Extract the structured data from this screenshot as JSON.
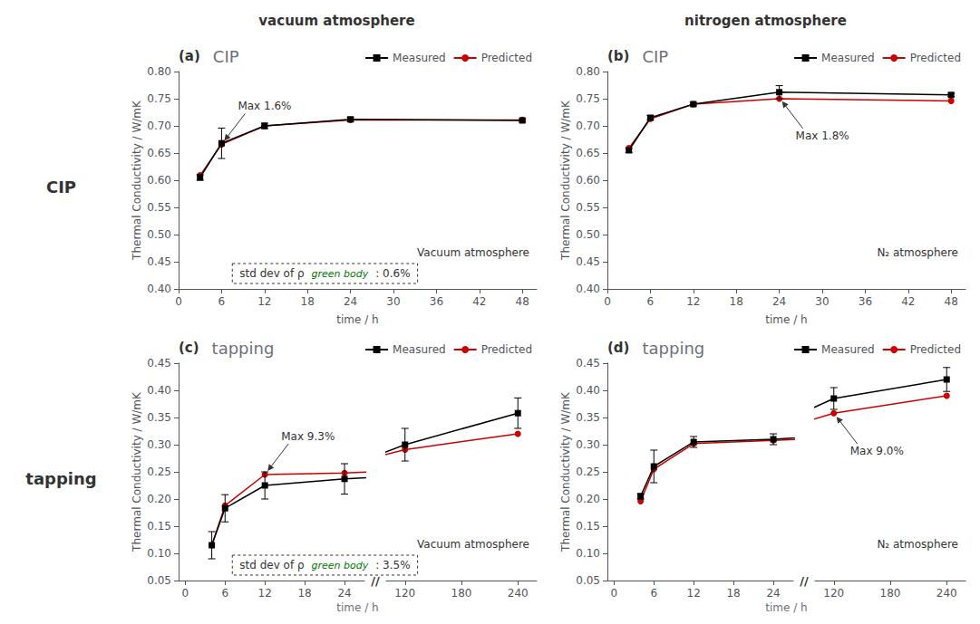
{
  "chart_data": [
    {
      "type": "line",
      "title": "(a)",
      "subtitle": "CIP",
      "column_title": "vacuum atmosphere",
      "row_title": "CIP",
      "xlabel": "time / h",
      "ylabel": "Thermal Conductivity / W/mK",
      "x": [
        3,
        6,
        12,
        24,
        48
      ],
      "series": [
        {
          "name": "Measured",
          "color": "#000000",
          "marker": "square",
          "line_style": "solid",
          "values": [
            0.605,
            0.668,
            0.7,
            0.712,
            0.71
          ],
          "errors": [
            0.005,
            0.028,
            0.005,
            0.004,
            0.003
          ]
        },
        {
          "name": "Predicted",
          "color": "#cc0000",
          "marker": "circle",
          "line_style": "solid",
          "values": [
            0.609,
            0.666,
            0.7,
            0.711,
            0.711
          ]
        }
      ],
      "xlim": [
        0,
        50
      ],
      "xticks": [
        0,
        6,
        12,
        18,
        24,
        30,
        36,
        42,
        48
      ],
      "ylim": [
        0.4,
        0.8
      ],
      "yticks": [
        {
          "value": 0.4,
          "label": "0.40"
        },
        0.45,
        {
          "value": 0.5,
          "label": "0.50"
        },
        0.55,
        {
          "value": 0.6,
          "label": "0.60"
        },
        0.65,
        {
          "value": 0.7,
          "label": "0.70"
        },
        0.75,
        {
          "value": 0.8,
          "label": "0.80"
        }
      ],
      "grid": false,
      "legend": "top",
      "annotations": [
        {
          "text": "Max 1.6%",
          "x": 6,
          "y": 0.666
        },
        {
          "text": "Vacuum atmosphere"
        },
        {
          "parts": [
            {
              "text": "std dev of ρ"
            },
            {
              "text": "green body",
              "color": "#007700"
            },
            {
              "text": ": 0.6%"
            }
          ]
        }
      ]
    },
    {
      "type": "line",
      "title": "(b)",
      "subtitle": "CIP",
      "column_title": "nitrogen atmosphere",
      "xlabel": "time / h",
      "ylabel": "Thermal Conductivity / W/mK",
      "x": [
        3,
        6,
        12,
        24,
        48
      ],
      "series": [
        {
          "name": "Measured",
          "color": "#000000",
          "marker": "square",
          "line_style": "solid",
          "values": [
            0.655,
            0.715,
            0.74,
            0.762,
            0.757
          ],
          "errors": [
            0.004,
            0.004,
            0.003,
            0.012,
            0.003
          ]
        },
        {
          "name": "Predicted",
          "color": "#cc0000",
          "marker": "circle",
          "line_style": "solid",
          "values": [
            0.659,
            0.713,
            0.74,
            0.75,
            0.746
          ]
        }
      ],
      "xlim": [
        0,
        50
      ],
      "xticks": [
        0,
        6,
        12,
        18,
        24,
        30,
        36,
        42,
        48
      ],
      "ylim": [
        0.4,
        0.8
      ],
      "yticks": [
        {
          "value": 0.4,
          "label": "0.40"
        },
        0.45,
        {
          "value": 0.5,
          "label": "0.50"
        },
        0.55,
        {
          "value": 0.6,
          "label": "0.60"
        },
        0.65,
        {
          "value": 0.7,
          "label": "0.70"
        },
        0.75,
        {
          "value": 0.8,
          "label": "0.80"
        }
      ],
      "grid": false,
      "legend": "top",
      "annotations": [
        {
          "text": "Max 1.8%",
          "x": 24,
          "y": 0.752
        },
        {
          "text": "N₂ atmosphere"
        }
      ]
    },
    {
      "type": "line",
      "title": "(c)",
      "subtitle": "tapping",
      "row_title": "tapping",
      "xlabel": "time / h",
      "ylabel": "Thermal Conductivity / W/mK",
      "x": [
        4,
        6,
        12,
        24,
        120,
        240
      ],
      "series": [
        {
          "name": "Measured",
          "color": "#000000",
          "marker": "square",
          "line_style": "solid",
          "values": [
            0.115,
            0.183,
            0.225,
            0.237,
            0.3,
            0.358
          ],
          "errors": [
            0.025,
            0.025,
            0.025,
            0.028,
            0.03,
            0.028
          ]
        },
        {
          "name": "Predicted",
          "color": "#cc0000",
          "marker": "circle",
          "line_style": "solid",
          "values": [
            0.115,
            0.188,
            0.245,
            0.248,
            0.291,
            0.32
          ]
        }
      ],
      "xlim": [
        -1,
        260
      ],
      "x_break": {
        "from": 27,
        "to": 100,
        "label": "//"
      },
      "xticks": [
        0,
        6,
        12,
        18,
        24,
        120,
        180,
        240
      ],
      "ylim": [
        0.05,
        0.45
      ],
      "yticks": [
        0.05,
        {
          "value": 0.1,
          "label": "0.10"
        },
        0.15,
        {
          "value": 0.2,
          "label": "0.20"
        },
        0.25,
        {
          "value": 0.3,
          "label": "0.30"
        },
        0.35,
        {
          "value": 0.4,
          "label": "0.40"
        },
        0.45
      ],
      "grid": false,
      "legend": "top",
      "annotations": [
        {
          "text": "Max 9.3%",
          "x": 12,
          "y": 0.245
        },
        {
          "text": "Vacuum atmosphere"
        },
        {
          "parts": [
            {
              "text": "std dev of ρ"
            },
            {
              "text": "green body",
              "color": "#007700"
            },
            {
              "text": ": 3.5%"
            }
          ]
        }
      ]
    },
    {
      "type": "line",
      "title": "(d)",
      "subtitle": "tapping",
      "xlabel": "time / h",
      "ylabel": "Thermal Conductivity / W/mK",
      "x": [
        4,
        6,
        12,
        24,
        120,
        240
      ],
      "series": [
        {
          "name": "Measured",
          "color": "#000000",
          "marker": "square",
          "line_style": "solid",
          "values": [
            0.205,
            0.26,
            0.305,
            0.31,
            0.385,
            0.42
          ],
          "errors": [
            0.005,
            0.03,
            0.01,
            0.01,
            0.02,
            0.022
          ]
        },
        {
          "name": "Predicted",
          "color": "#cc0000",
          "marker": "circle",
          "line_style": "solid",
          "values": [
            0.196,
            0.255,
            0.302,
            0.308,
            0.358,
            0.39
          ]
        }
      ],
      "xlim": [
        -1,
        260
      ],
      "x_break": {
        "from": 27,
        "to": 100,
        "label": "//"
      },
      "xticks": [
        0,
        6,
        12,
        18,
        24,
        120,
        180,
        240
      ],
      "ylim": [
        0.05,
        0.45
      ],
      "yticks": [
        0.05,
        {
          "value": 0.1,
          "label": "0.10"
        },
        0.15,
        {
          "value": 0.2,
          "label": "0.20"
        },
        0.25,
        {
          "value": 0.3,
          "label": "0.30"
        },
        0.35,
        {
          "value": 0.4,
          "label": "0.40"
        },
        0.45
      ],
      "grid": false,
      "legend": "top",
      "annotations": [
        {
          "text": "Max 9.0%",
          "x": 120,
          "y": 0.358
        },
        {
          "text": "N₂ atmosphere"
        }
      ]
    }
  ]
}
